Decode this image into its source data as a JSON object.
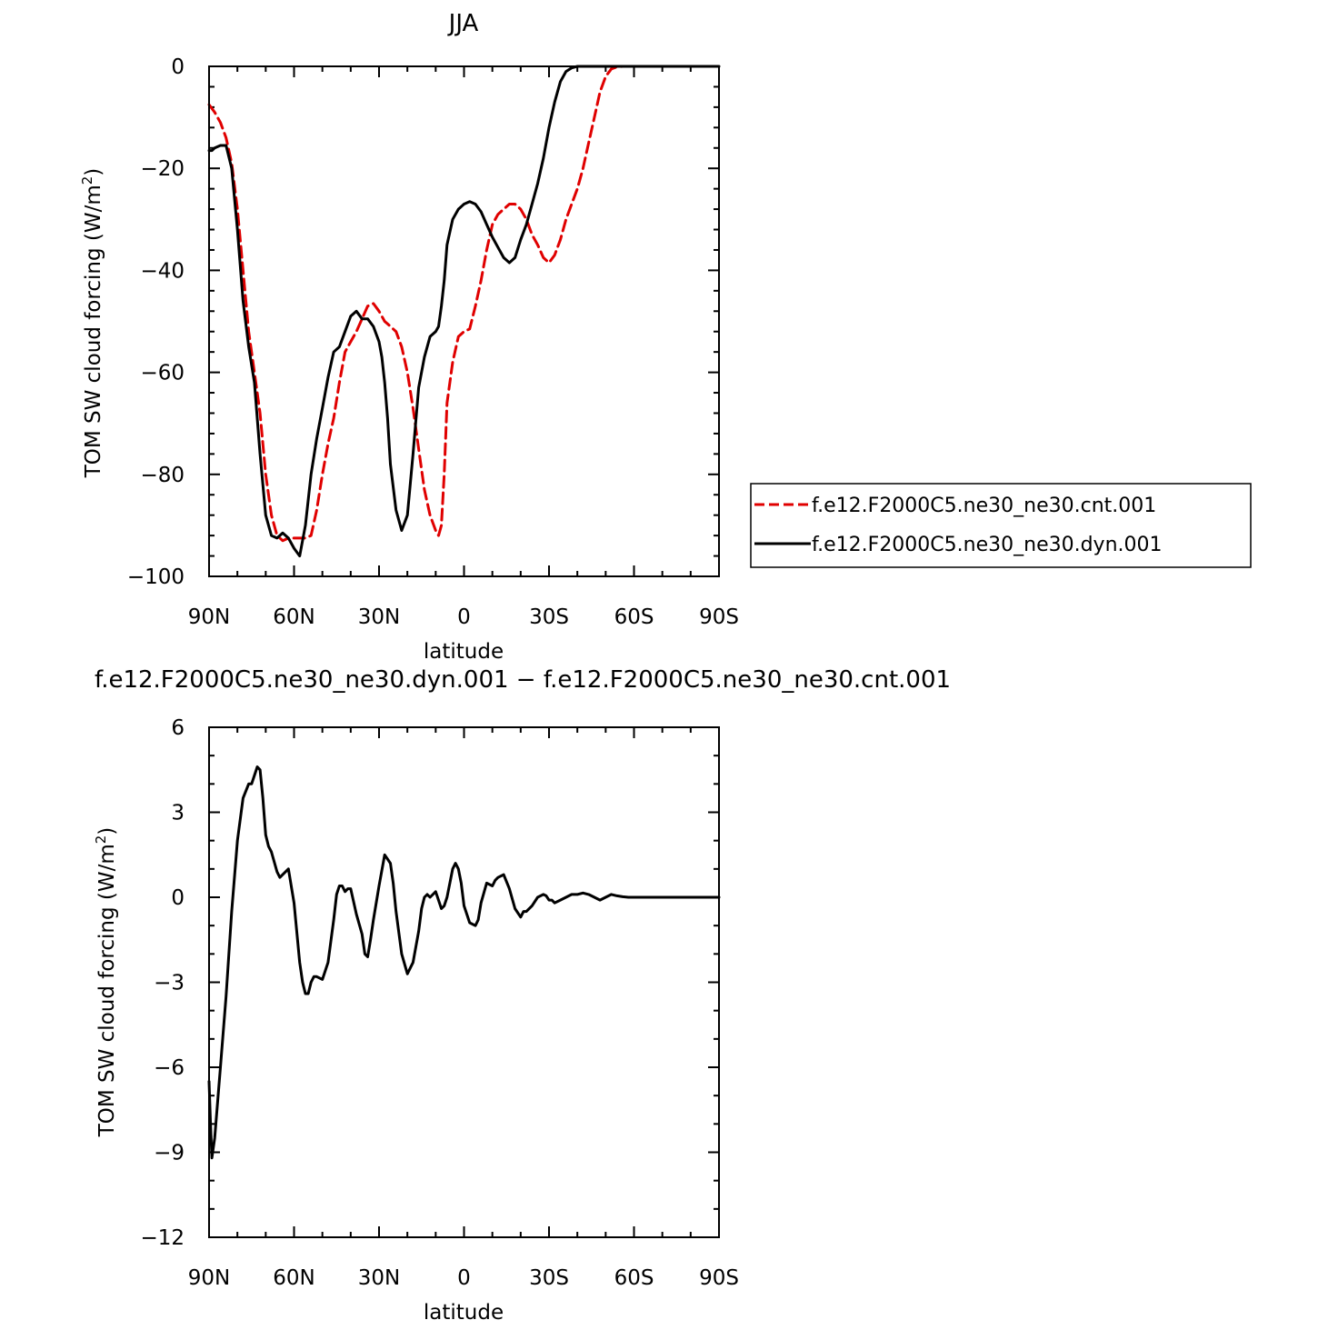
{
  "chart_data": [
    {
      "type": "line",
      "title": "JJA",
      "xlabel": "latitude",
      "ylabel": "TOM SW cloud forcing (W/m²)",
      "xticks": [
        "90N",
        "60N",
        "30N",
        "0",
        "30S",
        "60S",
        "90S"
      ],
      "xlim": [
        90,
        -90
      ],
      "ylim": [
        -100,
        0
      ],
      "yticks": [
        "0",
        "−20",
        "−40",
        "−60",
        "−80",
        "−100"
      ],
      "legend_position": "right",
      "series": [
        {
          "name": "f.e12.F2000C5.ne30_ne30.cnt.001",
          "color": "#e00000",
          "dash": true,
          "x": [
            90,
            88,
            86,
            84,
            82,
            80,
            78,
            76,
            74,
            72,
            70,
            68,
            66,
            64,
            62,
            60,
            58,
            56,
            54,
            52,
            50,
            48,
            46,
            44,
            42,
            40,
            38,
            36,
            34,
            32,
            30,
            29,
            28,
            27,
            26,
            24,
            22,
            20,
            18,
            16,
            14,
            12,
            10,
            9,
            8,
            7,
            6,
            4,
            2,
            0,
            -2,
            -4,
            -6,
            -8,
            -10,
            -12,
            -14,
            -16,
            -18,
            -20,
            -22,
            -24,
            -26,
            -28,
            -30,
            -32,
            -34,
            -36,
            -38,
            -40,
            -42,
            -44,
            -46,
            -48,
            -50,
            -52,
            -54,
            -56,
            -58,
            -60,
            -62,
            -64,
            -66,
            -68,
            -70,
            -75,
            -80,
            -85,
            -90
          ],
          "y": [
            -7.5,
            -9,
            -11,
            -14,
            -19,
            -28,
            -40,
            -52,
            -60,
            -68,
            -80,
            -88,
            -92,
            -93,
            -92.5,
            -92.5,
            -92.5,
            -92.5,
            -92,
            -87,
            -80,
            -74,
            -69,
            -62,
            -56,
            -54,
            -52,
            -49.5,
            -47,
            -46.5,
            -48,
            -49,
            -50,
            -50.5,
            -51,
            -52,
            -55,
            -60,
            -67,
            -75,
            -83,
            -88,
            -91,
            -92,
            -90,
            -80,
            -66,
            -58,
            -53,
            -52,
            -51.5,
            -47,
            -42,
            -36,
            -31,
            -29,
            -28,
            -27,
            -27,
            -28,
            -30,
            -33,
            -35,
            -37.5,
            -38.5,
            -37,
            -34,
            -30,
            -27,
            -24,
            -20,
            -15,
            -10,
            -5,
            -2,
            -0.5,
            -0.1,
            0,
            0,
            0,
            0,
            0,
            0,
            0,
            0,
            0,
            0,
            0,
            0
          ]
        },
        {
          "name": "f.e12.F2000C5.ne30_ne30.dyn.001",
          "color": "#000000",
          "dash": false,
          "x": [
            90,
            89,
            88,
            86,
            84,
            82,
            80,
            78,
            76,
            74,
            72,
            70,
            68,
            66,
            64,
            62,
            60,
            58,
            56,
            54,
            52,
            50,
            48,
            46,
            44,
            42,
            40,
            38,
            36,
            34,
            32,
            30,
            29,
            28,
            27,
            26,
            24,
            22,
            20,
            18,
            16,
            14,
            12,
            10,
            9,
            8,
            7,
            6,
            4,
            2,
            0,
            -2,
            -4,
            -6,
            -8,
            -10,
            -12,
            -14,
            -16,
            -18,
            -20,
            -22,
            -24,
            -26,
            -28,
            -30,
            -32,
            -34,
            -36,
            -38,
            -40,
            -42,
            -44,
            -46,
            -48,
            -50,
            -52,
            -54,
            -56,
            -58,
            -60,
            -62,
            -64,
            -66,
            -68,
            -70,
            -75,
            -80,
            -85,
            -90
          ],
          "y": [
            -16.5,
            -16.5,
            -16,
            -15.5,
            -15.5,
            -20,
            -32,
            -46,
            -55,
            -62,
            -76,
            -88,
            -92,
            -92.5,
            -91.5,
            -92.5,
            -94.5,
            -96,
            -90,
            -80,
            -73,
            -67,
            -61,
            -56,
            -55,
            -52,
            -49,
            -48,
            -49.5,
            -49.5,
            -51,
            -54,
            -57,
            -62,
            -69,
            -78,
            -87,
            -91,
            -88,
            -76,
            -63,
            -57,
            -53,
            -52,
            -51,
            -47,
            -42,
            -35,
            -30,
            -28,
            -27,
            -26.5,
            -27,
            -28.5,
            -31,
            -33.5,
            -35.5,
            -37.5,
            -38.5,
            -37.5,
            -34,
            -31,
            -27,
            -23,
            -18,
            -12,
            -7,
            -3,
            -1,
            -0.3,
            0,
            0,
            0,
            0,
            0,
            0,
            0,
            0,
            0,
            0,
            0,
            0,
            0,
            0,
            0,
            0,
            0,
            0,
            0,
            0
          ]
        }
      ]
    },
    {
      "type": "line",
      "title": "f.e12.F2000C5.ne30_ne30.dyn.001 − f.e12.F2000C5.ne30_ne30.cnt.001",
      "xlabel": "latitude",
      "ylabel": "TOM SW cloud forcing (W/m²)",
      "xticks": [
        "90N",
        "60N",
        "30N",
        "0",
        "30S",
        "60S",
        "90S"
      ],
      "xlim": [
        90,
        -90
      ],
      "ylim": [
        -12,
        6
      ],
      "yticks": [
        "6",
        "3",
        "0",
        "−3",
        "−6",
        "−9",
        "−12"
      ],
      "series": [
        {
          "color": "#000000",
          "dash": false,
          "x": [
            90,
            89.5,
            89,
            88,
            86,
            84,
            82,
            80,
            78,
            76,
            75,
            74,
            73,
            72,
            71,
            70,
            69,
            68,
            66,
            65,
            64,
            62,
            60,
            58,
            57,
            56,
            55,
            54,
            53,
            52,
            50,
            48,
            46,
            45,
            44,
            43,
            42,
            41,
            40,
            38,
            36,
            35,
            34,
            33,
            32,
            30,
            28,
            26,
            25,
            24,
            22,
            20,
            18,
            16,
            15,
            14,
            13,
            12,
            10,
            8,
            7,
            6,
            5,
            4,
            3,
            2,
            1,
            0,
            -2,
            -4,
            -5,
            -6,
            -8,
            -10,
            -11,
            -12,
            -14,
            -16,
            -18,
            -20,
            -21,
            -22,
            -24,
            -26,
            -28,
            -29,
            -30,
            -31,
            -32,
            -34,
            -36,
            -38,
            -40,
            -42,
            -44,
            -46,
            -48,
            -50,
            -52,
            -54,
            -56,
            -58,
            -60,
            -62,
            -64,
            -66,
            -68,
            -70,
            -75,
            -80,
            -85,
            -90
          ],
          "y": [
            -6.5,
            -8,
            -9.2,
            -8.5,
            -6,
            -3.5,
            -0.5,
            2,
            3.5,
            4,
            4,
            4.3,
            4.6,
            4.5,
            3.5,
            2.2,
            1.8,
            1.6,
            0.9,
            0.7,
            0.8,
            1,
            -0.2,
            -2.3,
            -3,
            -3.4,
            -3.4,
            -3,
            -2.8,
            -2.8,
            -2.9,
            -2.3,
            -0.8,
            0.1,
            0.4,
            0.4,
            0.2,
            0.3,
            0.3,
            -0.6,
            -1.3,
            -2,
            -2.1,
            -1.5,
            -0.8,
            0.4,
            1.5,
            1.2,
            0.5,
            -0.5,
            -2,
            -2.7,
            -2.3,
            -1.2,
            -0.4,
            0,
            0.1,
            0,
            0.2,
            -0.4,
            -0.3,
            0,
            0.5,
            1,
            1.2,
            1,
            0.5,
            -0.3,
            -0.9,
            -1,
            -0.8,
            -0.2,
            0.5,
            0.4,
            0.6,
            0.7,
            0.8,
            0.3,
            -0.4,
            -0.7,
            -0.5,
            -0.5,
            -0.3,
            0,
            0.1,
            0.05,
            -0.1,
            -0.1,
            -0.2,
            -0.1,
            0,
            0.1,
            0.1,
            0.15,
            0.1,
            0,
            -0.1,
            0,
            0.1,
            0.05,
            0.02,
            0,
            0,
            0,
            0,
            0,
            0,
            0,
            0,
            0,
            0,
            0
          ]
        }
      ]
    }
  ]
}
